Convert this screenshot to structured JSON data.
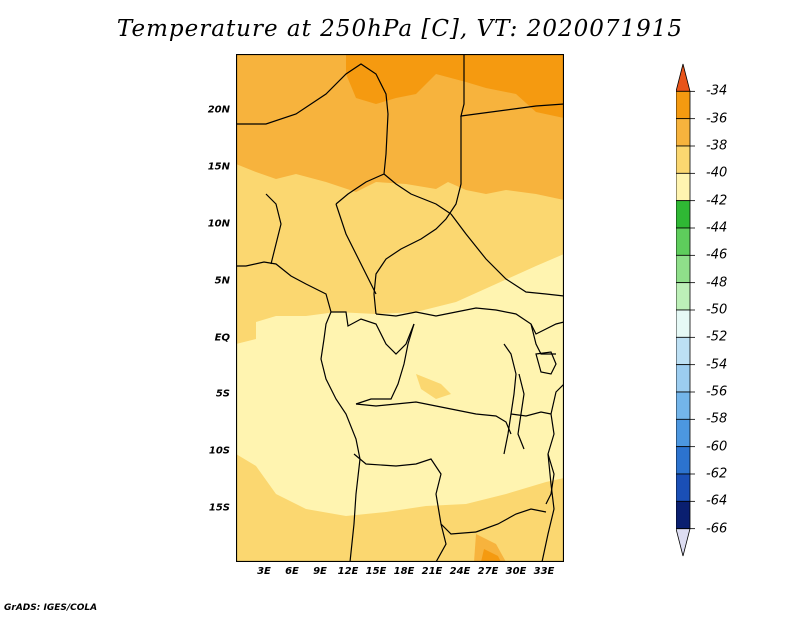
{
  "title": "Temperature at 250hPa [C], VT: 2020071915",
  "credit": "GrADS: IGES/COLA",
  "x_ticks": [
    "3E",
    "6E",
    "9E",
    "12E",
    "15E",
    "18E",
    "21E",
    "24E",
    "27E",
    "30E",
    "33E"
  ],
  "y_ticks": [
    "20N",
    "15N",
    "10N",
    "5N",
    "EQ",
    "5S",
    "10S",
    "15S"
  ],
  "colorbar": {
    "labels": [
      "-34",
      "-36",
      "-38",
      "-40",
      "-42",
      "-44",
      "-46",
      "-48",
      "-50",
      "-52",
      "-54",
      "-56",
      "-58",
      "-60",
      "-62",
      "-64",
      "-66"
    ],
    "colors": [
      "#e8541a",
      "#f59a10",
      "#f7b33d",
      "#fbd770",
      "#fff4b0",
      "#2fb834",
      "#5ecd5c",
      "#8fdf8a",
      "#bdf0b8",
      "#e6f9f6",
      "#bde0f4",
      "#9ccdf0",
      "#73b5ea",
      "#4c97e0",
      "#2c73cf",
      "#1a4fb6",
      "#0a1f70",
      "#ddddf2"
    ]
  },
  "map": {
    "levels": [
      {
        "name": "-42",
        "color": "#fff4b0"
      },
      {
        "name": "-40",
        "color": "#fbd770"
      },
      {
        "name": "-38",
        "color": "#f7b33d"
      },
      {
        "name": "-36",
        "color": "#f59a10"
      }
    ]
  }
}
